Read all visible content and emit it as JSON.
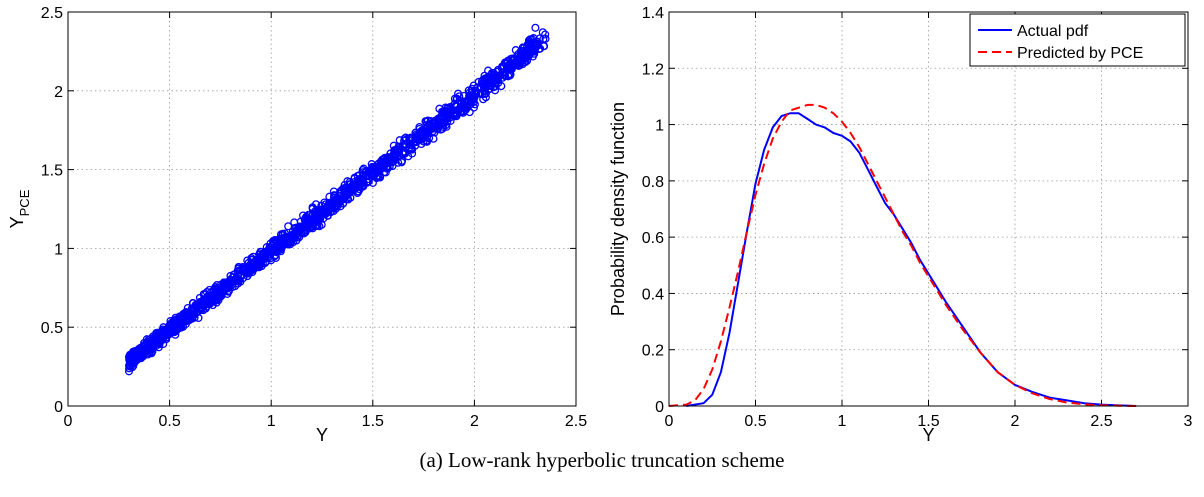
{
  "caption": "(a)  Low-rank hyperbolic truncation scheme",
  "chart_data": [
    {
      "type": "scatter",
      "xlabel": "Y",
      "ylabel_main": "Y",
      "ylabel_sub": "PCE",
      "xlim": [
        0,
        2.5
      ],
      "ylim": [
        0,
        2.5
      ],
      "xticks": [
        0,
        0.5,
        1,
        1.5,
        2,
        2.5
      ],
      "yticks": [
        0,
        0.5,
        1,
        1.5,
        2,
        2.5
      ],
      "xtick_labels": [
        "0",
        "0.5",
        "1",
        "1.5",
        "2",
        "2.5"
      ],
      "ytick_labels": [
        "0",
        "0.5",
        "1",
        "1.5",
        "2",
        "2.5"
      ],
      "grid": true,
      "marker": "open circle",
      "color": "#0000ff",
      "trend": {
        "x_min": 0.3,
        "x_max": 2.35,
        "slope": 1.0,
        "intercept": -0.02,
        "spread": 0.055
      },
      "points_x": [
        0.3,
        0.31,
        0.33,
        0.36,
        0.4,
        0.43,
        0.47,
        0.5,
        0.52,
        0.55,
        0.6,
        0.62,
        0.65,
        0.7,
        0.72,
        0.75,
        0.8,
        0.83,
        0.85,
        0.9,
        0.95,
        1.0,
        1.03,
        1.05,
        1.1,
        1.15,
        1.2,
        1.25,
        1.3,
        1.35,
        1.4,
        1.45,
        1.5,
        1.52,
        1.55,
        1.6,
        1.65,
        1.7,
        1.75,
        1.8,
        1.85,
        1.9,
        1.95,
        2.0,
        2.05,
        2.1,
        2.15,
        2.2,
        2.25,
        2.3,
        2.35,
        0.45,
        0.58,
        0.68,
        0.78,
        0.88,
        0.98,
        1.08,
        1.18,
        1.28,
        1.38,
        1.48,
        1.58,
        1.68,
        1.78,
        1.88,
        1.98,
        2.08,
        2.18,
        2.28,
        0.35,
        0.55,
        0.75,
        0.95,
        1.15,
        1.35,
        1.55,
        1.75,
        1.95,
        2.15
      ],
      "points_y": [
        0.22,
        0.28,
        0.3,
        0.33,
        0.39,
        0.45,
        0.44,
        0.5,
        0.47,
        0.55,
        0.57,
        0.6,
        0.66,
        0.65,
        0.71,
        0.72,
        0.78,
        0.8,
        0.83,
        0.88,
        0.91,
        0.98,
        1.0,
        1.02,
        1.07,
        1.13,
        1.16,
        1.22,
        1.27,
        1.31,
        1.37,
        1.42,
        1.46,
        1.5,
        1.52,
        1.58,
        1.6,
        1.67,
        1.72,
        1.76,
        1.8,
        1.86,
        1.91,
        1.96,
        2.0,
        2.08,
        2.1,
        2.2,
        2.22,
        2.4,
        2.33,
        0.4,
        0.52,
        0.63,
        0.76,
        0.84,
        0.97,
        1.03,
        1.15,
        1.24,
        1.36,
        1.44,
        1.55,
        1.64,
        1.75,
        1.83,
        1.96,
        2.03,
        2.15,
        2.25,
        0.36,
        0.5,
        0.7,
        0.9,
        1.1,
        1.31,
        1.54,
        1.7,
        1.9,
        2.12
      ]
    },
    {
      "type": "line",
      "xlabel": "Y",
      "ylabel": "Probability density function",
      "xlim": [
        0,
        3
      ],
      "ylim": [
        0,
        1.4
      ],
      "xticks": [
        0,
        0.5,
        1,
        1.5,
        2,
        2.5,
        3
      ],
      "yticks": [
        0,
        0.2,
        0.4,
        0.6,
        0.8,
        1,
        1.2,
        1.4
      ],
      "xtick_labels": [
        "0",
        "0.5",
        "1",
        "1.5",
        "2",
        "2.5",
        "3"
      ],
      "ytick_labels": [
        "0",
        "0.2",
        "0.4",
        "0.6",
        "0.8",
        "1",
        "1.2",
        "1.4"
      ],
      "grid": true,
      "legend_position": "top-right",
      "series": [
        {
          "name": "Actual pdf",
          "color": "#0000ff",
          "style": "solid",
          "x": [
            0.1,
            0.2,
            0.25,
            0.3,
            0.35,
            0.4,
            0.45,
            0.5,
            0.55,
            0.6,
            0.65,
            0.7,
            0.75,
            0.8,
            0.85,
            0.9,
            0.95,
            1.0,
            1.05,
            1.1,
            1.15,
            1.2,
            1.25,
            1.3,
            1.35,
            1.4,
            1.45,
            1.5,
            1.55,
            1.6,
            1.7,
            1.8,
            1.9,
            2.0,
            2.1,
            2.2,
            2.3,
            2.4,
            2.5,
            2.6,
            2.7
          ],
          "y": [
            0.0,
            0.01,
            0.04,
            0.12,
            0.26,
            0.44,
            0.62,
            0.79,
            0.91,
            0.99,
            1.03,
            1.04,
            1.04,
            1.02,
            1.0,
            0.99,
            0.97,
            0.96,
            0.94,
            0.9,
            0.84,
            0.78,
            0.72,
            0.68,
            0.63,
            0.58,
            0.52,
            0.47,
            0.42,
            0.37,
            0.28,
            0.19,
            0.12,
            0.075,
            0.05,
            0.03,
            0.02,
            0.01,
            0.005,
            0.002,
            0.0
          ]
        },
        {
          "name": "Predicted by PCE",
          "color": "#ff0000",
          "style": "dashed",
          "x": [
            0.0,
            0.1,
            0.15,
            0.2,
            0.25,
            0.3,
            0.35,
            0.4,
            0.45,
            0.5,
            0.55,
            0.6,
            0.65,
            0.7,
            0.75,
            0.8,
            0.85,
            0.9,
            0.95,
            1.0,
            1.05,
            1.1,
            1.15,
            1.2,
            1.25,
            1.3,
            1.35,
            1.4,
            1.45,
            1.5,
            1.55,
            1.6,
            1.7,
            1.8,
            1.9,
            2.0,
            2.1,
            2.2,
            2.3,
            2.4,
            2.5,
            2.6,
            2.7
          ],
          "y": [
            0.0,
            0.005,
            0.02,
            0.06,
            0.13,
            0.23,
            0.35,
            0.48,
            0.62,
            0.75,
            0.86,
            0.95,
            1.01,
            1.05,
            1.06,
            1.07,
            1.07,
            1.06,
            1.04,
            1.01,
            0.97,
            0.92,
            0.86,
            0.8,
            0.74,
            0.68,
            0.62,
            0.57,
            0.51,
            0.46,
            0.41,
            0.36,
            0.27,
            0.19,
            0.12,
            0.075,
            0.045,
            0.025,
            0.012,
            0.006,
            0.003,
            0.001,
            0.0
          ]
        }
      ]
    }
  ]
}
